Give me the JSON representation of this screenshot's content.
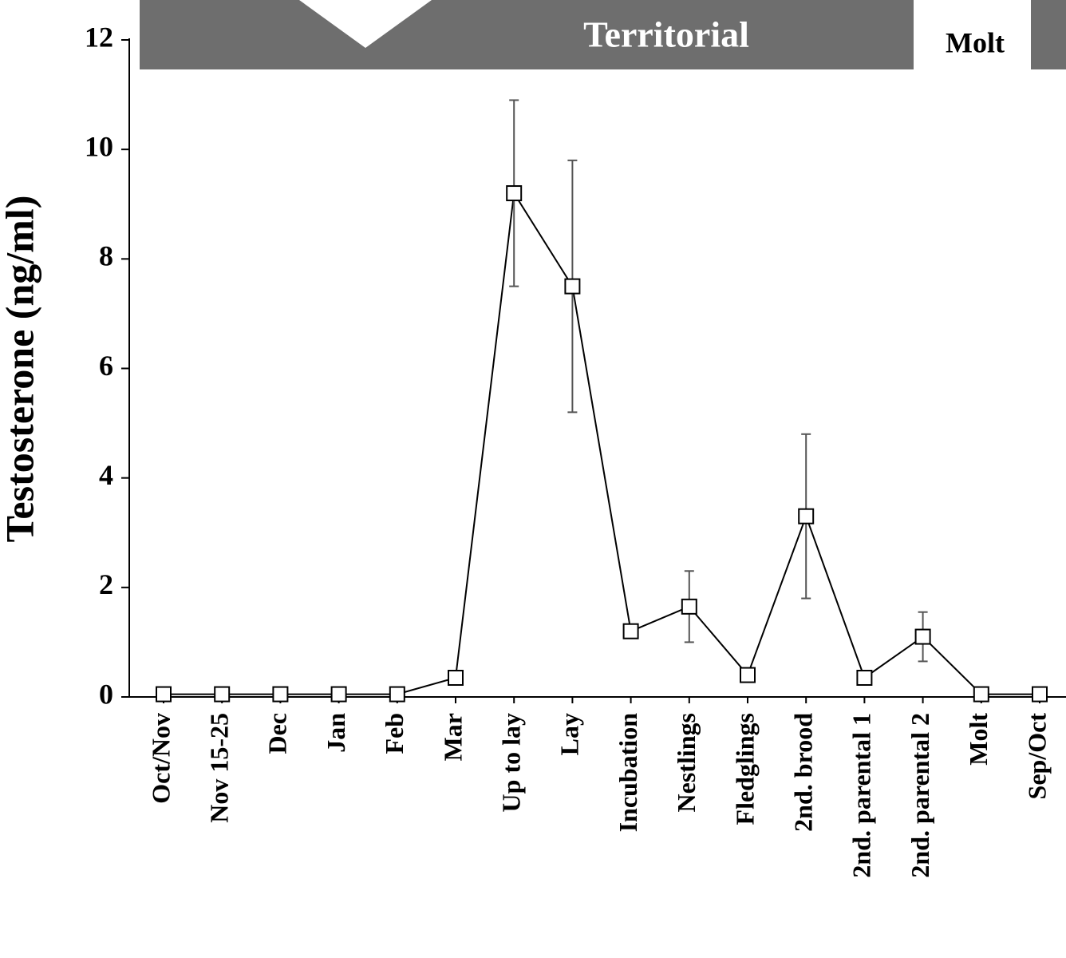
{
  "chart_data": {
    "type": "line",
    "y_label": "Testosterone (ng/ml)",
    "annotations": [
      "Territorial",
      "Molt"
    ],
    "categories": [
      "Oct/Nov",
      "Nov 15-25",
      "Dec",
      "Jan",
      "Feb",
      "Mar",
      "Up to lay",
      "Lay",
      "Incubation",
      "Nestlings",
      "Fledglings",
      "2nd. brood",
      "2nd. parental 1",
      "2nd. parental 2",
      "Molt",
      "Sep/Oct"
    ],
    "series": [
      {
        "color": "#000000",
        "values": [
          0.05,
          0.05,
          0.05,
          0.05,
          0.05,
          0.35,
          9.2,
          7.5,
          1.2,
          1.65,
          0.4,
          3.3,
          0.35,
          1.1,
          0.05,
          0.05
        ],
        "errors": [
          null,
          null,
          null,
          null,
          null,
          null,
          1.7,
          2.3,
          null,
          0.65,
          null,
          1.5,
          null,
          0.45,
          null,
          null
        ]
      }
    ],
    "ylim": [
      0,
      12
    ],
    "yticks": [
      0,
      2,
      4,
      6,
      8,
      10,
      12
    ]
  }
}
